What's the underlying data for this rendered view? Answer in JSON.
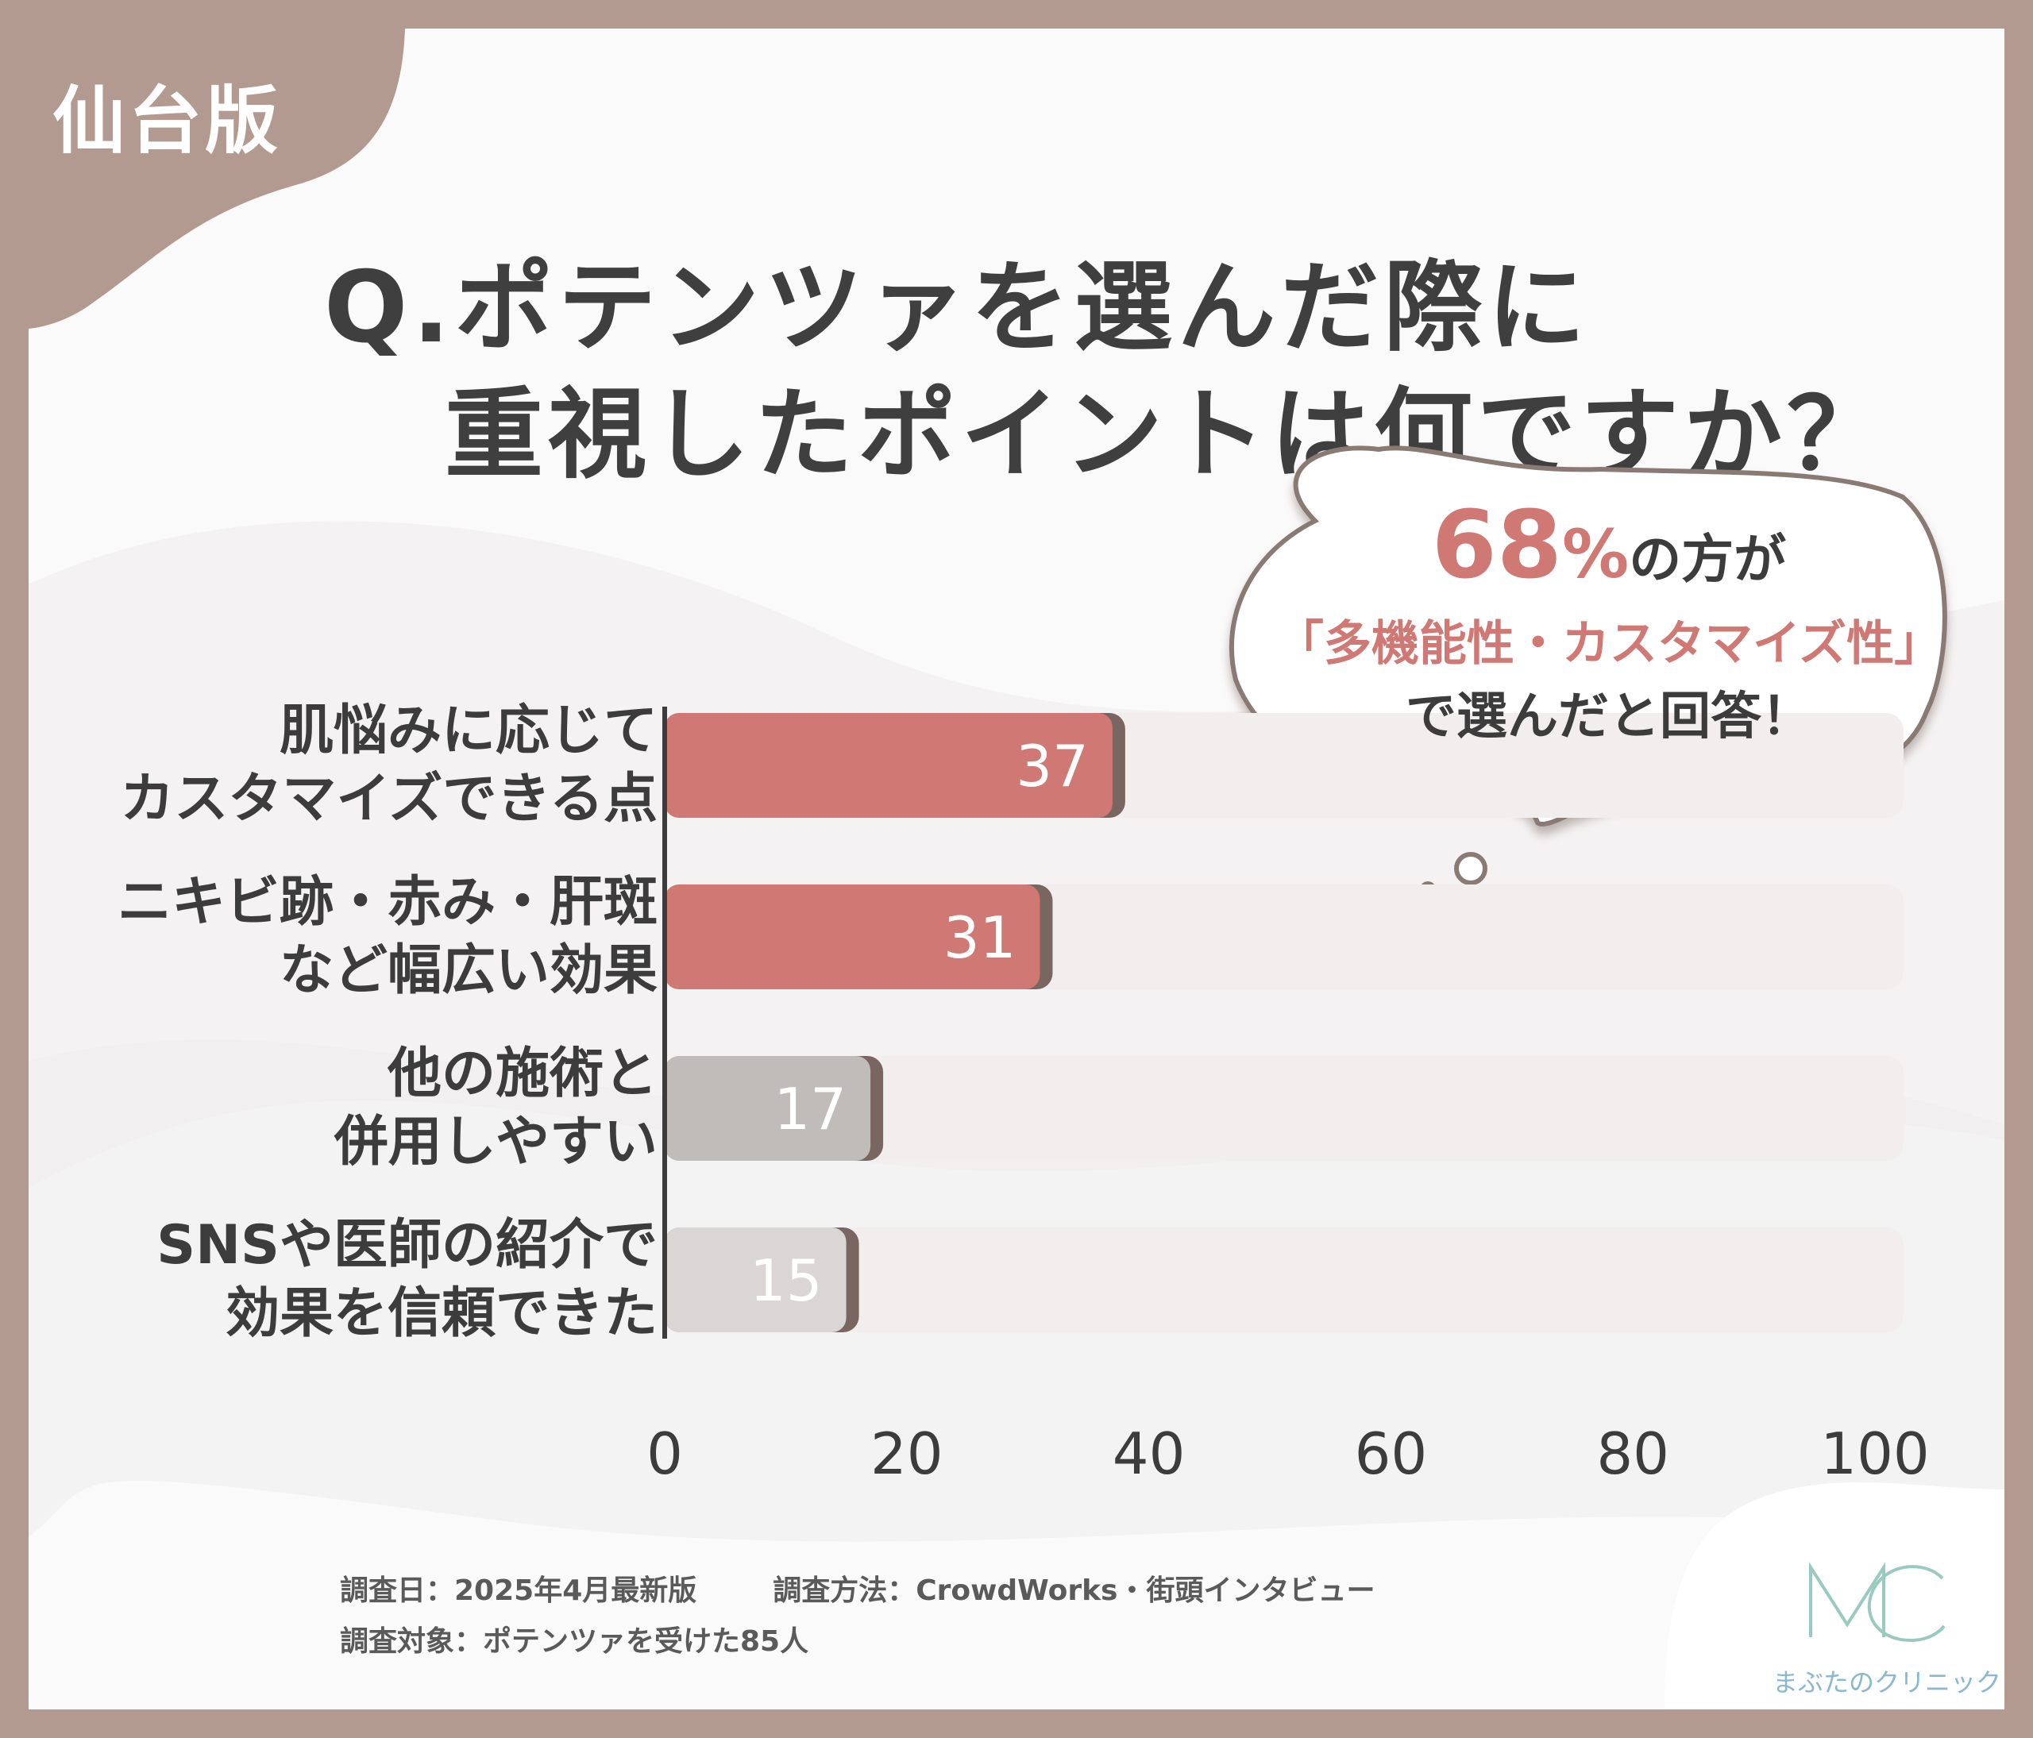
{
  "region_badge": "仙台版",
  "title": {
    "line1": "Q.ポテンツァを選んだ際に",
    "line2": "重視したポイントは何ですか？"
  },
  "callout": {
    "percent": "68",
    "percent_sign": "%",
    "line1_rest": "の方が",
    "line2": "「多機能性・カスタマイズ性」",
    "line3": "で選んだと回答！"
  },
  "chart_data": {
    "type": "bar",
    "orientation": "horizontal",
    "categories": [
      [
        "肌悩みに応じて",
        "カスタマイズできる点"
      ],
      [
        "ニキビ跡・赤み・肝斑",
        "など幅広い効果"
      ],
      [
        "他の施術と",
        "併用しやすい"
      ],
      [
        "SNSや医師の紹介で",
        "効果を信頼できた"
      ]
    ],
    "values": [
      37,
      31,
      17,
      15
    ],
    "value_labels": [
      "37",
      "31",
      "17",
      "15"
    ],
    "xlim": [
      0,
      100
    ],
    "x_ticks": [
      "0",
      "20",
      "40",
      "60",
      "80",
      "100"
    ],
    "bar_colors": [
      "#cf7874",
      "#cf7874",
      "#bfbcba",
      "#d9d6d5"
    ],
    "track_color": "#f2eeed",
    "grid": false
  },
  "footer": {
    "survey_date": "調査日：2025年4月最新版",
    "survey_method": "調査方法：CrowdWorks・街頭インタビュー",
    "survey_subject": "調査対象：ポテンツァを受けた85人"
  },
  "logo": {
    "mark": "MC",
    "brand_name": "まぶたのクリニック"
  },
  "colors": {
    "frame": "#b29a90",
    "accent": "#cf7874",
    "text": "#3f3f3f",
    "logo": "#8ab8cc"
  }
}
